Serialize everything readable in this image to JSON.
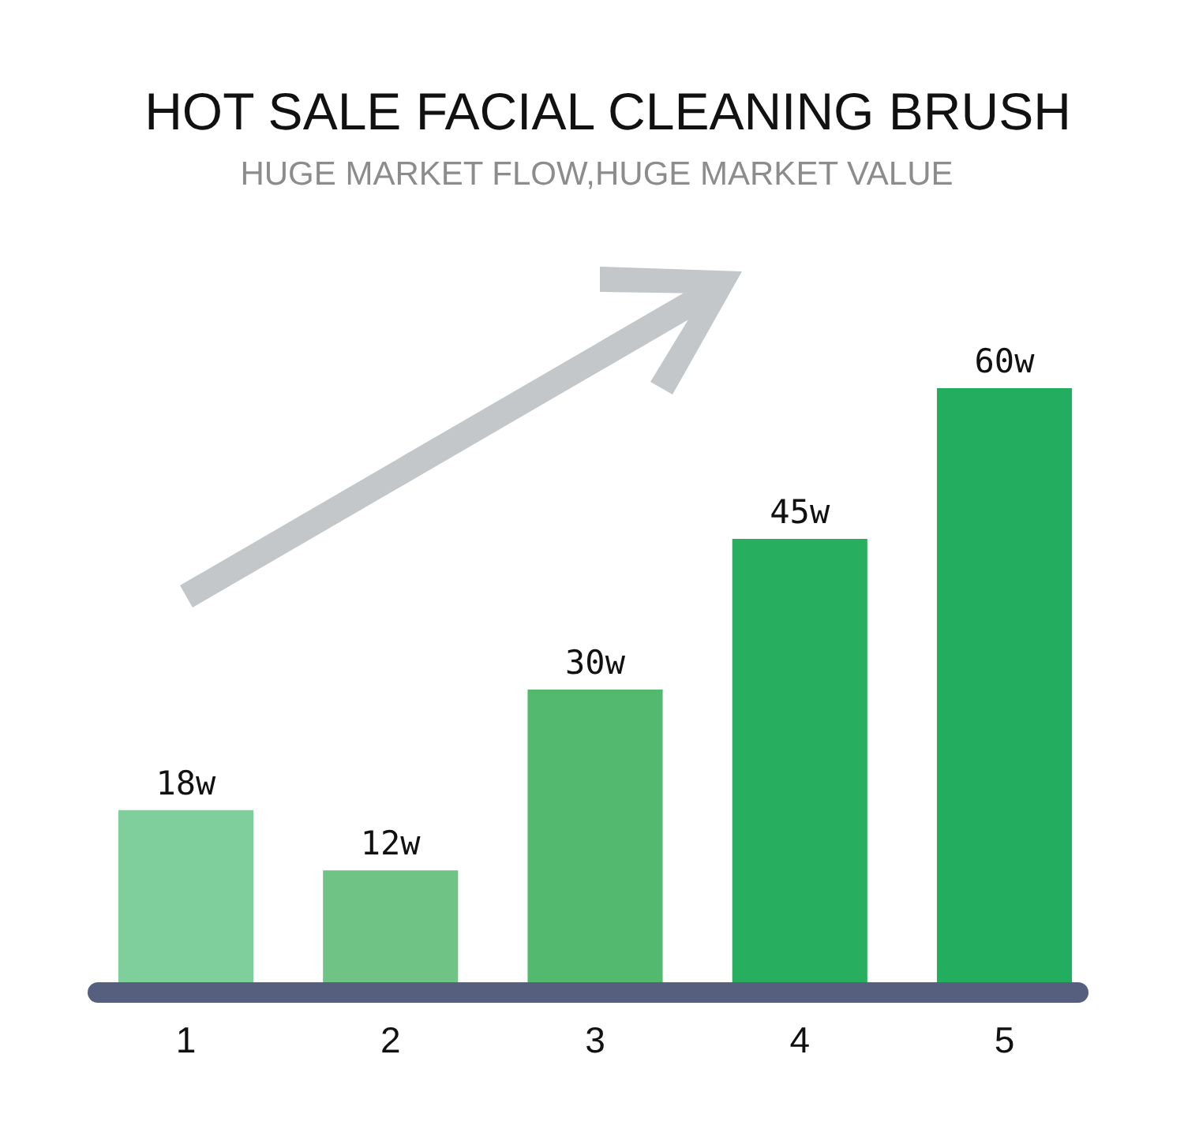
{
  "chart_data": {
    "type": "bar",
    "title": "HOT SALE FACIAL CLEANING BRUSH",
    "subtitle": "HUGE MARKET FLOW,HUGE MARKET VALUE",
    "categories": [
      "1",
      "2",
      "3",
      "4",
      "5"
    ],
    "values": [
      18,
      12,
      30,
      45,
      60
    ],
    "colors": [
      "#7fcf9d",
      "#6fc385",
      "#52b96f",
      "#27ae5f",
      "#23ad5e"
    ],
    "value_labels": [
      "18w",
      "12w",
      "30w",
      "45w",
      "60w"
    ]
  }
}
